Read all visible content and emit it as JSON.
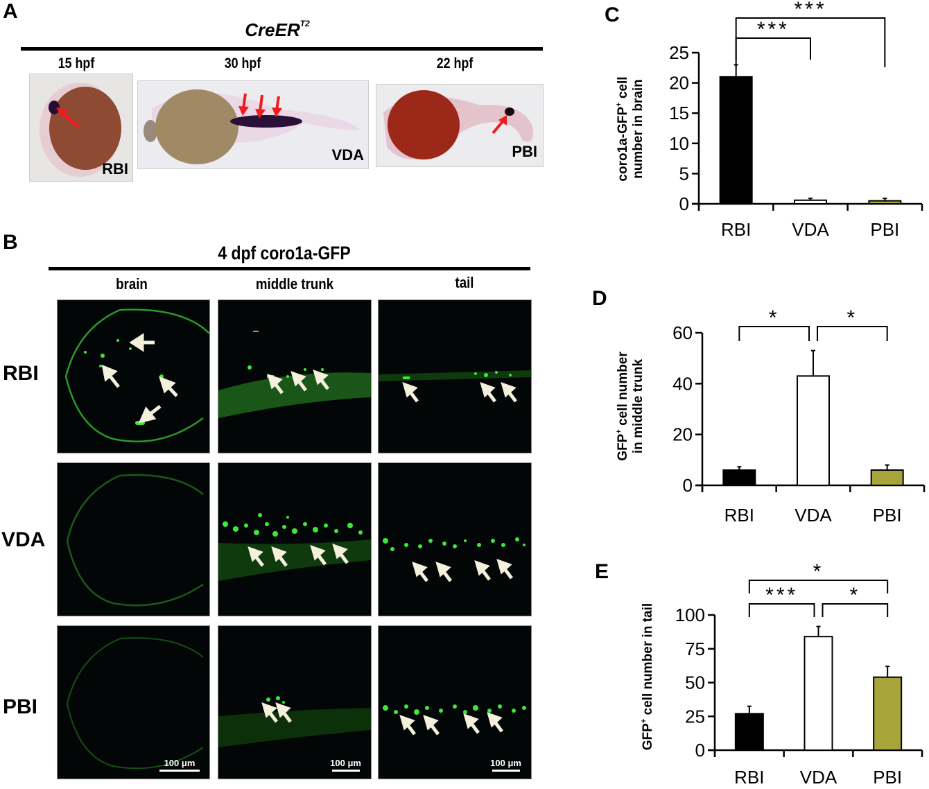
{
  "panel_a": {
    "letter": "A",
    "title": "CreER",
    "title_sup": "T2",
    "images": [
      {
        "stage": "15 hpf",
        "label": "RBI"
      },
      {
        "stage": "30 hpf",
        "label": "VDA"
      },
      {
        "stage": "22 hpf",
        "label": "PBI"
      }
    ]
  },
  "panel_b": {
    "letter": "B",
    "title": "4 dpf coro1a-GFP",
    "columns": [
      "brain",
      "middle trunk",
      "tail"
    ],
    "rows": [
      "RBI",
      "VDA",
      "PBI"
    ],
    "scale_bar": "100 μm"
  },
  "colors": {
    "rbi": "#000000",
    "vda": "#ffffff",
    "pbi": "#a8a43c",
    "arrow_a": "#ee1c1c",
    "arrow_b": "#f4f0dc",
    "gfp": "#3ee83a"
  },
  "chart_data": [
    {
      "panel": "C",
      "type": "bar",
      "categories": [
        "RBI",
        "VDA",
        "PBI"
      ],
      "values": [
        21,
        0.6,
        0.5
      ],
      "errors": [
        2,
        0.3,
        0.4
      ],
      "ylabel_line1": "coro1a-GFP",
      "ylabel_sup": "+",
      "ylabel_line1_end": " cell",
      "ylabel_line2": "number in brain",
      "ylim": [
        0,
        25
      ],
      "yticks": [
        "0",
        "5",
        "10",
        "15",
        "20",
        "25"
      ],
      "significance": [
        {
          "pair": [
            "RBI",
            "VDA"
          ],
          "label": "***"
        },
        {
          "pair": [
            "RBI",
            "PBI"
          ],
          "label": "***"
        }
      ]
    },
    {
      "panel": "D",
      "type": "bar",
      "categories": [
        "RBI",
        "VDA",
        "PBI"
      ],
      "values": [
        6,
        43,
        6
      ],
      "errors": [
        1.3,
        10,
        2
      ],
      "ylabel_line1": "GFP",
      "ylabel_sup": "+",
      "ylabel_line1_end": " cell number",
      "ylabel_line2": "in middle trunk",
      "ylim": [
        0,
        60
      ],
      "yticks": [
        "0",
        "20",
        "40",
        "60"
      ],
      "significance": [
        {
          "pair": [
            "RBI",
            "VDA"
          ],
          "label": "*"
        },
        {
          "pair": [
            "VDA",
            "PBI"
          ],
          "label": "*"
        }
      ]
    },
    {
      "panel": "E",
      "type": "bar",
      "categories": [
        "RBI",
        "VDA",
        "PBI"
      ],
      "values": [
        27,
        84,
        54
      ],
      "errors": [
        5.5,
        7.5,
        8
      ],
      "ylabel_line1": "GFP",
      "ylabel_sup": "+",
      "ylabel_line1_end": " cell number in tail",
      "ylabel_line2": "",
      "ylim": [
        0,
        100
      ],
      "yticks": [
        "0",
        "25",
        "50",
        "75",
        "100"
      ],
      "significance": [
        {
          "pair": [
            "RBI",
            "VDA"
          ],
          "label": "***"
        },
        {
          "pair": [
            "VDA",
            "PBI"
          ],
          "label": "*"
        },
        {
          "pair": [
            "RBI",
            "PBI"
          ],
          "label": "*"
        }
      ]
    }
  ]
}
